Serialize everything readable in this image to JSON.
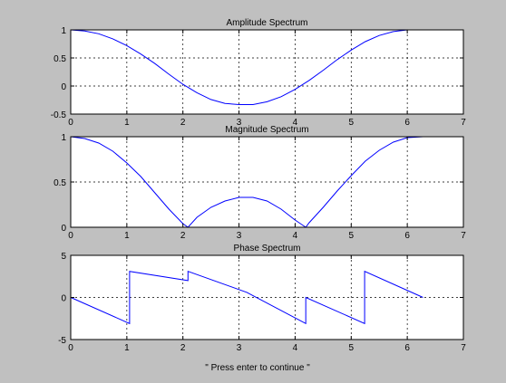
{
  "figure": {
    "background": "#c0c0c0",
    "axes_background": "#ffffff",
    "line_color": "#0000ff",
    "grid": true,
    "xlabel": "\" Press enter to continue \""
  },
  "chart_data": [
    {
      "type": "line",
      "title": "Amplitude Spectrum",
      "xlabel": "",
      "ylabel": "",
      "xlim": [
        0,
        7
      ],
      "ylim": [
        -0.5,
        1
      ],
      "xticks": [
        "0",
        "1",
        "2",
        "3",
        "4",
        "5",
        "6",
        "7"
      ],
      "yticks": [
        "-0.5",
        "0",
        "0.5",
        "1"
      ],
      "series": [
        {
          "x": [
            0,
            0.25,
            0.5,
            0.75,
            1.0,
            1.25,
            1.5,
            1.75,
            2.0,
            2.25,
            2.5,
            2.75,
            3.0,
            3.14,
            3.25,
            3.5,
            3.75,
            4.0,
            4.25,
            4.5,
            4.75,
            5.0,
            5.25,
            5.5,
            5.75,
            6.0,
            6.28
          ],
          "y": [
            1.0,
            0.98,
            0.93,
            0.84,
            0.72,
            0.57,
            0.4,
            0.21,
            0.03,
            -0.12,
            -0.24,
            -0.31,
            -0.33,
            -0.33,
            -0.33,
            -0.28,
            -0.19,
            -0.06,
            0.1,
            0.28,
            0.47,
            0.64,
            0.79,
            0.9,
            0.97,
            1.0,
            1.0
          ]
        }
      ]
    },
    {
      "type": "line",
      "title": "Magnitude Spectrum",
      "xlabel": "",
      "ylabel": "",
      "xlim": [
        0,
        7
      ],
      "ylim": [
        0,
        1
      ],
      "xticks": [
        "0",
        "1",
        "2",
        "3",
        "4",
        "5",
        "6",
        "7"
      ],
      "yticks": [
        "0",
        "0.5",
        "1"
      ],
      "series": [
        {
          "x": [
            0,
            0.25,
            0.5,
            0.75,
            1.0,
            1.25,
            1.5,
            1.75,
            2.0,
            2.09,
            2.25,
            2.5,
            2.75,
            3.0,
            3.14,
            3.25,
            3.5,
            3.75,
            4.0,
            4.19,
            4.25,
            4.5,
            4.75,
            5.0,
            5.25,
            5.5,
            5.75,
            6.0,
            6.28
          ],
          "y": [
            1.0,
            0.98,
            0.93,
            0.84,
            0.71,
            0.56,
            0.38,
            0.2,
            0.04,
            0.0,
            0.11,
            0.22,
            0.29,
            0.33,
            0.33,
            0.33,
            0.29,
            0.2,
            0.08,
            0.0,
            0.05,
            0.22,
            0.4,
            0.57,
            0.73,
            0.85,
            0.94,
            0.99,
            1.0
          ]
        }
      ]
    },
    {
      "type": "line",
      "title": "Phase Spectrum",
      "xlabel": "\" Press enter to continue \"",
      "ylabel": "",
      "xlim": [
        0,
        7
      ],
      "ylim": [
        -5,
        5
      ],
      "xticks": [
        "0",
        "1",
        "2",
        "3",
        "4",
        "5",
        "6",
        "7"
      ],
      "yticks": [
        "-5",
        "0",
        "5"
      ],
      "series": [
        {
          "x": [
            0,
            1.05,
            1.05,
            2.09,
            2.09,
            3.14,
            4.19,
            4.19,
            5.24,
            5.24,
            6.28
          ],
          "y": [
            0,
            -3.1,
            3.1,
            2.0,
            3.1,
            0.6,
            -3.1,
            0.0,
            -3.1,
            3.1,
            0.0
          ]
        }
      ]
    }
  ]
}
